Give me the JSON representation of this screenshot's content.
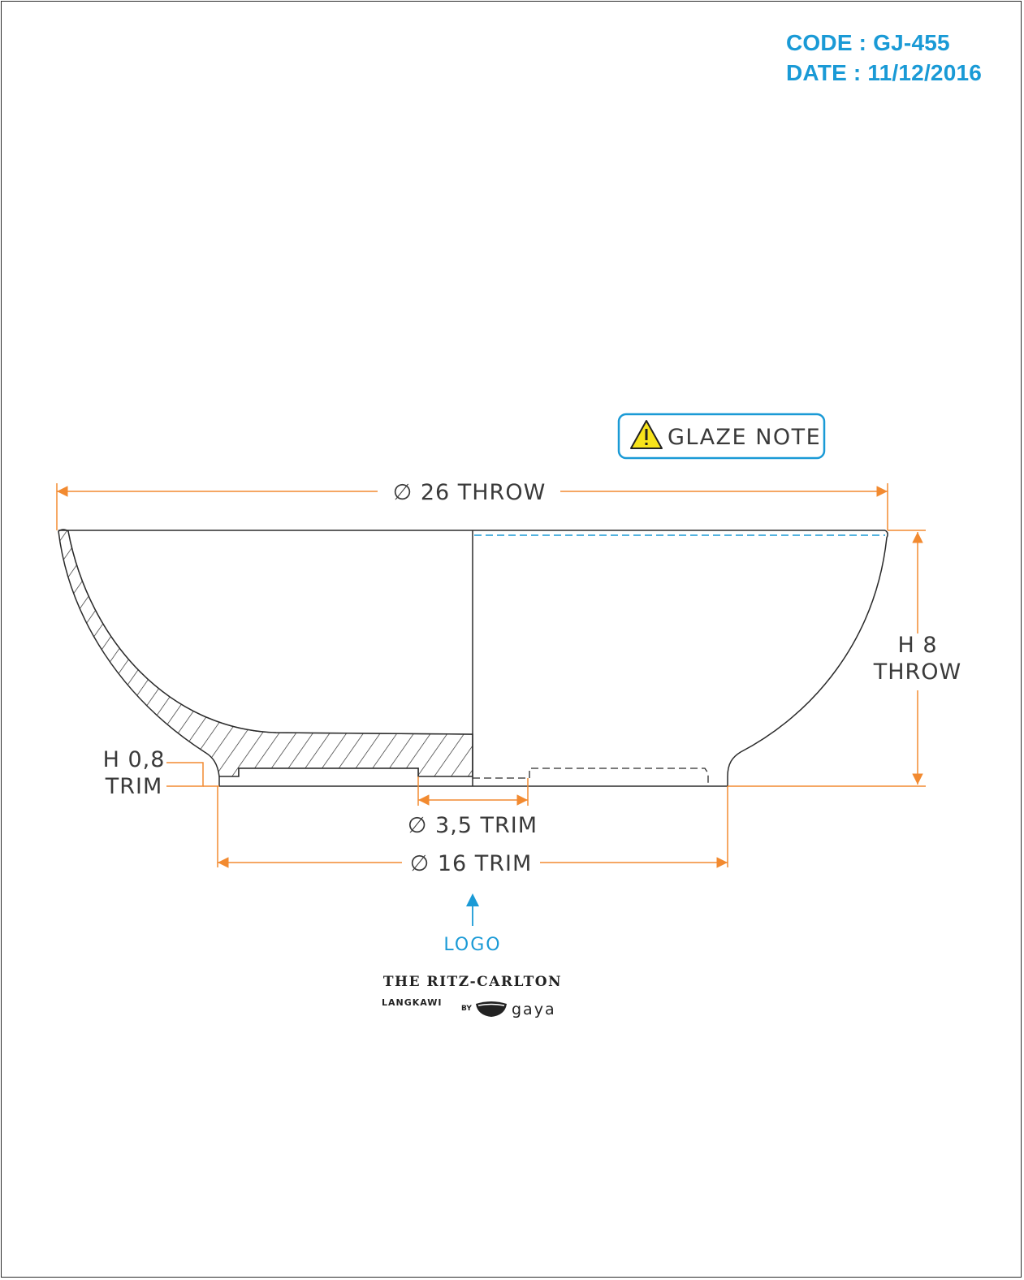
{
  "header": {
    "code": "CODE : GJ-455",
    "date": "DATE : 11/12/2016"
  },
  "colors": {
    "dimension": "#f28a30",
    "accent": "#1a9ad6",
    "outline": "#2b2b2b"
  },
  "glaze_note": {
    "label": "GLAZE NOTE",
    "icon": "warning-icon"
  },
  "dimensions": {
    "rim_diameter": "∅ 26 THROW",
    "height_line1": "H 8",
    "height_line2": "THROW",
    "foot_height_line1": "H 0,8",
    "foot_height_line2": "TRIM",
    "logo_diameter": "∅ 3,5 TRIM",
    "foot_diameter": "∅ 16 TRIM"
  },
  "logo_callout": {
    "label": "LOGO"
  },
  "brand": {
    "name": "THE RITZ-CARLTON",
    "location": "LANGKAWI",
    "by": "BY",
    "maker": "gaya",
    "icon": "bowl-logo-icon"
  }
}
